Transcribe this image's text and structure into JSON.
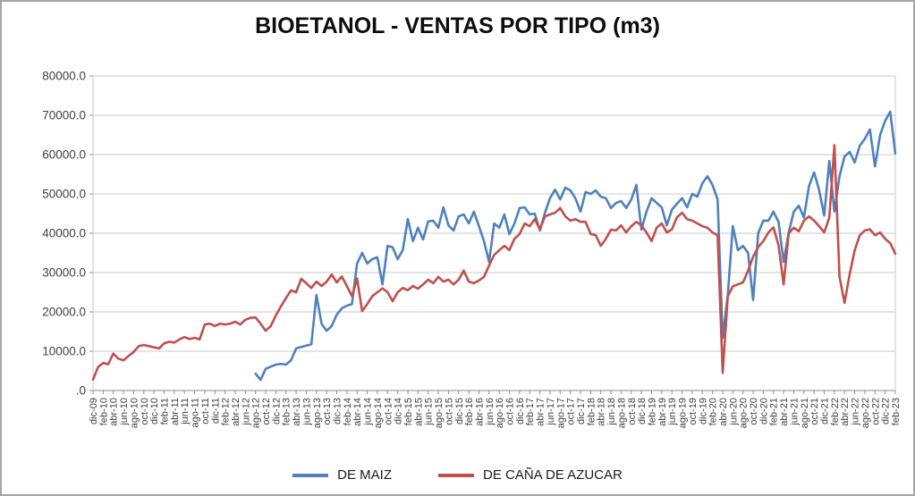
{
  "window": {
    "background": "#ffffff",
    "frame_border_color": "#a6a6a6"
  },
  "chart_data": {
    "type": "line",
    "title": "BIOETANOL - VENTAS POR TIPO (m3)",
    "legend_position": "bottom",
    "gridlines": "horizontal",
    "colors": {
      "grid": "#c9c9c9",
      "axis": "#8c8c8c",
      "tick_text": "#404040"
    },
    "y_axis": {
      "min": 0,
      "max": 80000,
      "step": 10000,
      "label_format": "#0.0",
      "tick_labels": [
        "80000.0",
        "70000.0",
        "60000.0",
        "50000.0",
        "40000.0",
        "30000.0",
        "20000.0",
        "10000.0",
        ".0"
      ]
    },
    "x_axis": {
      "tick_step_months": 2,
      "first_tick": "dic-09",
      "last_tick": "feb-23",
      "label_rotation_deg": -90
    },
    "months": [
      "dic-09",
      "ene-10",
      "feb-10",
      "mar-10",
      "abr-10",
      "may-10",
      "jun-10",
      "jul-10",
      "ago-10",
      "sep-10",
      "oct-10",
      "nov-10",
      "dic-10",
      "ene-11",
      "feb-11",
      "mar-11",
      "abr-11",
      "may-11",
      "jun-11",
      "jul-11",
      "ago-11",
      "sep-11",
      "oct-11",
      "nov-11",
      "dic-11",
      "ene-12",
      "feb-12",
      "mar-12",
      "abr-12",
      "may-12",
      "jun-12",
      "jul-12",
      "ago-12",
      "sep-12",
      "oct-12",
      "nov-12",
      "dic-12",
      "ene-13",
      "feb-13",
      "mar-13",
      "abr-13",
      "may-13",
      "jun-13",
      "jul-13",
      "ago-13",
      "sep-13",
      "oct-13",
      "nov-13",
      "dic-13",
      "ene-14",
      "feb-14",
      "mar-14",
      "abr-14",
      "may-14",
      "jun-14",
      "jul-14",
      "ago-14",
      "sep-14",
      "oct-14",
      "nov-14",
      "dic-14",
      "ene-15",
      "feb-15",
      "mar-15",
      "abr-15",
      "may-15",
      "jun-15",
      "jul-15",
      "ago-15",
      "sep-15",
      "oct-15",
      "nov-15",
      "dic-15",
      "ene-16",
      "feb-16",
      "mar-16",
      "abr-16",
      "may-16",
      "jun-16",
      "jul-16",
      "ago-16",
      "sep-16",
      "oct-16",
      "nov-16",
      "dic-16",
      "ene-17",
      "feb-17",
      "mar-17",
      "abr-17",
      "may-17",
      "jun-17",
      "jul-17",
      "ago-17",
      "sep-17",
      "oct-17",
      "nov-17",
      "dic-17",
      "ene-18",
      "feb-18",
      "mar-18",
      "abr-18",
      "may-18",
      "jun-18",
      "jul-18",
      "ago-18",
      "sep-18",
      "oct-18",
      "nov-18",
      "dic-18",
      "ene-19",
      "feb-19",
      "mar-19",
      "abr-19",
      "may-19",
      "jun-19",
      "jul-19",
      "ago-19",
      "sep-19",
      "oct-19",
      "nov-19",
      "dic-19",
      "ene-20",
      "feb-20",
      "mar-20",
      "abr-20",
      "may-20",
      "jun-20",
      "jul-20",
      "ago-20",
      "sep-20",
      "oct-20",
      "nov-20",
      "dic-20",
      "ene-21",
      "feb-21",
      "mar-21",
      "abr-21",
      "may-21",
      "jun-21",
      "jul-21",
      "ago-21",
      "sep-21",
      "oct-21",
      "nov-21",
      "dic-21",
      "ene-22",
      "feb-22",
      "mar-22",
      "abr-22",
      "may-22",
      "jun-22",
      "jul-22",
      "ago-22",
      "sep-22",
      "oct-22",
      "nov-22",
      "dic-22",
      "ene-23",
      "feb-23"
    ],
    "series": [
      {
        "name": "DE MAIZ",
        "color": "#4F81BD",
        "values": [
          null,
          null,
          null,
          null,
          null,
          null,
          null,
          null,
          null,
          null,
          null,
          null,
          null,
          null,
          null,
          null,
          null,
          null,
          null,
          null,
          null,
          null,
          null,
          null,
          null,
          null,
          null,
          null,
          null,
          null,
          null,
          null,
          4300,
          2700,
          5500,
          6100,
          6600,
          6800,
          6600,
          7700,
          10700,
          11100,
          11400,
          11800,
          24300,
          17000,
          15200,
          16400,
          19300,
          20900,
          21600,
          22000,
          32300,
          35000,
          32300,
          33400,
          33900,
          27000,
          36800,
          36400,
          33400,
          35700,
          43600,
          38000,
          41400,
          38400,
          43000,
          43200,
          41400,
          46600,
          42000,
          40700,
          44300,
          44800,
          42500,
          45500,
          41800,
          38000,
          32700,
          42500,
          41400,
          44800,
          39800,
          42500,
          46400,
          46600,
          44800,
          45000,
          40700,
          45200,
          48900,
          51100,
          48600,
          51600,
          50900,
          48900,
          45500,
          50500,
          50000,
          50900,
          49300,
          48900,
          46400,
          47700,
          48200,
          46400,
          48600,
          52300,
          40900,
          45500,
          48900,
          47700,
          46600,
          42000,
          46000,
          47500,
          48900,
          46600,
          50000,
          49300,
          52700,
          54500,
          52300,
          48600,
          13400,
          24300,
          41800,
          35700,
          36800,
          35000,
          23000,
          40000,
          43200,
          43200,
          45500,
          42900,
          32700,
          40200,
          45500,
          47000,
          44000,
          52000,
          55500,
          51000,
          44500,
          58400,
          45500,
          54500,
          59500,
          60700,
          58000,
          62300,
          64000,
          66400,
          57000,
          65000,
          68600,
          70900,
          60300
        ]
      },
      {
        "name": "DE CAÑA DE AZUCAR",
        "color": "#C0504D",
        "values": [
          2800,
          6000,
          7000,
          6700,
          9400,
          8100,
          7700,
          8800,
          9800,
          11300,
          11600,
          11300,
          11000,
          10700,
          12000,
          12400,
          12200,
          13000,
          13600,
          13100,
          13400,
          13000,
          16800,
          17000,
          16400,
          17000,
          16800,
          17000,
          17500,
          16800,
          18000,
          18500,
          18600,
          17000,
          15200,
          16400,
          19100,
          21400,
          23500,
          25500,
          25000,
          28400,
          27300,
          26100,
          27700,
          26600,
          27700,
          29500,
          27500,
          29000,
          26500,
          24000,
          28500,
          20200,
          22000,
          24000,
          25000,
          26000,
          25000,
          22700,
          25000,
          26100,
          25500,
          26600,
          25900,
          27000,
          28200,
          27300,
          28900,
          27700,
          28200,
          27000,
          28200,
          30500,
          27700,
          27300,
          28000,
          28900,
          31800,
          34500,
          35700,
          36800,
          35700,
          38600,
          39800,
          42500,
          41800,
          43600,
          41000,
          44300,
          44800,
          45200,
          46400,
          44300,
          43200,
          43600,
          42900,
          42900,
          39800,
          39500,
          36800,
          38600,
          40900,
          40700,
          42000,
          40200,
          41800,
          42900,
          42000,
          40200,
          38000,
          41400,
          42500,
          40200,
          41000,
          44100,
          45200,
          43600,
          43200,
          42500,
          41800,
          41400,
          40200,
          39500,
          4500,
          24000,
          26500,
          27000,
          27500,
          30500,
          34000,
          36500,
          38000,
          40200,
          41500,
          37000,
          27000,
          40000,
          41400,
          40500,
          43200,
          44300,
          43200,
          41800,
          40200,
          44000,
          62400,
          28900,
          22300,
          29500,
          35700,
          39500,
          40700,
          41000,
          39500,
          40200,
          38600,
          37500,
          34800
        ]
      }
    ]
  },
  "legend": {
    "items": [
      {
        "label": "DE MAIZ"
      },
      {
        "label": "DE CAÑA DE AZUCAR"
      }
    ]
  }
}
